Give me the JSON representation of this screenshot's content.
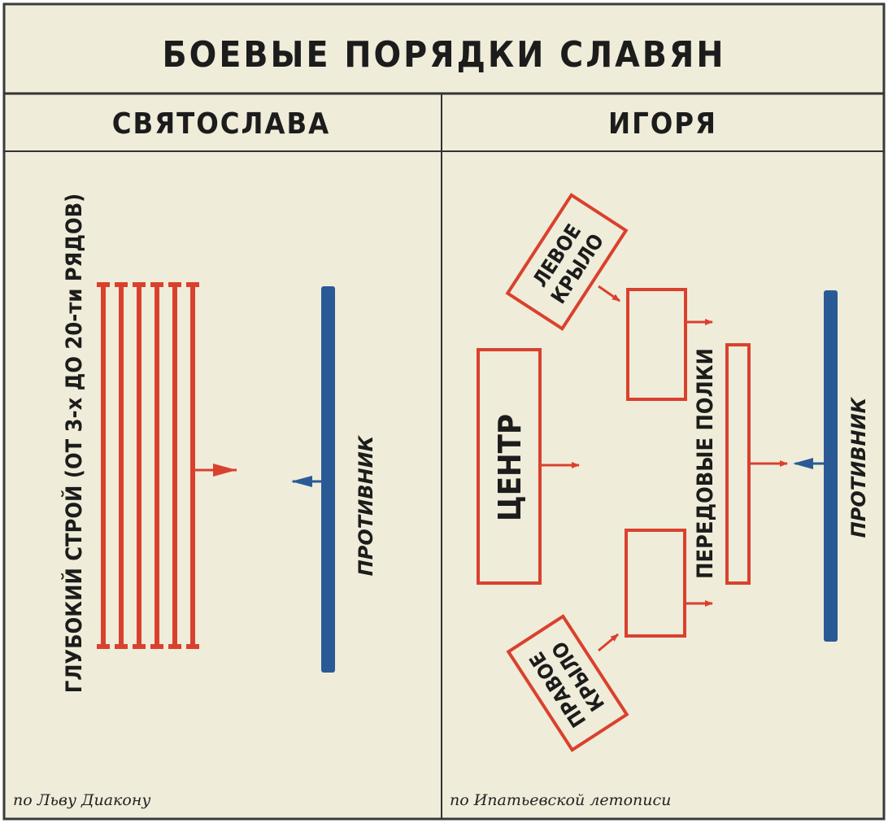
{
  "title": "БОЕВЫЕ ПОРЯДКИ СЛАВЯН",
  "colors": {
    "background": "#efecd9",
    "friendly": "#d9412e",
    "enemy": "#2a5a96",
    "ink": "#1c1c1c"
  },
  "left": {
    "heading": "СВЯТОСЛАВА",
    "formation_label": "ГЛУБОКИЙ СТРОЙ  (ОТ 3-х ДО 20-ти РЯДОВ)",
    "enemy_label": "ПРОТИВНИК",
    "source": "по Льву Диакону"
  },
  "right": {
    "heading": "ИГОРЯ",
    "center_label": "ЦЕНТР",
    "left_wing": {
      "line1": "ЛЕВОЕ",
      "line2": "КРЫЛО"
    },
    "right_wing": {
      "line1": "ПРАВОЕ",
      "line2": "КРЫЛО"
    },
    "vanguard_label": "ПЕРЕДОВЫЕ ПОЛКИ",
    "enemy_label": "ПРОТИВНИК",
    "source": "по Ипатьевской летописи"
  }
}
